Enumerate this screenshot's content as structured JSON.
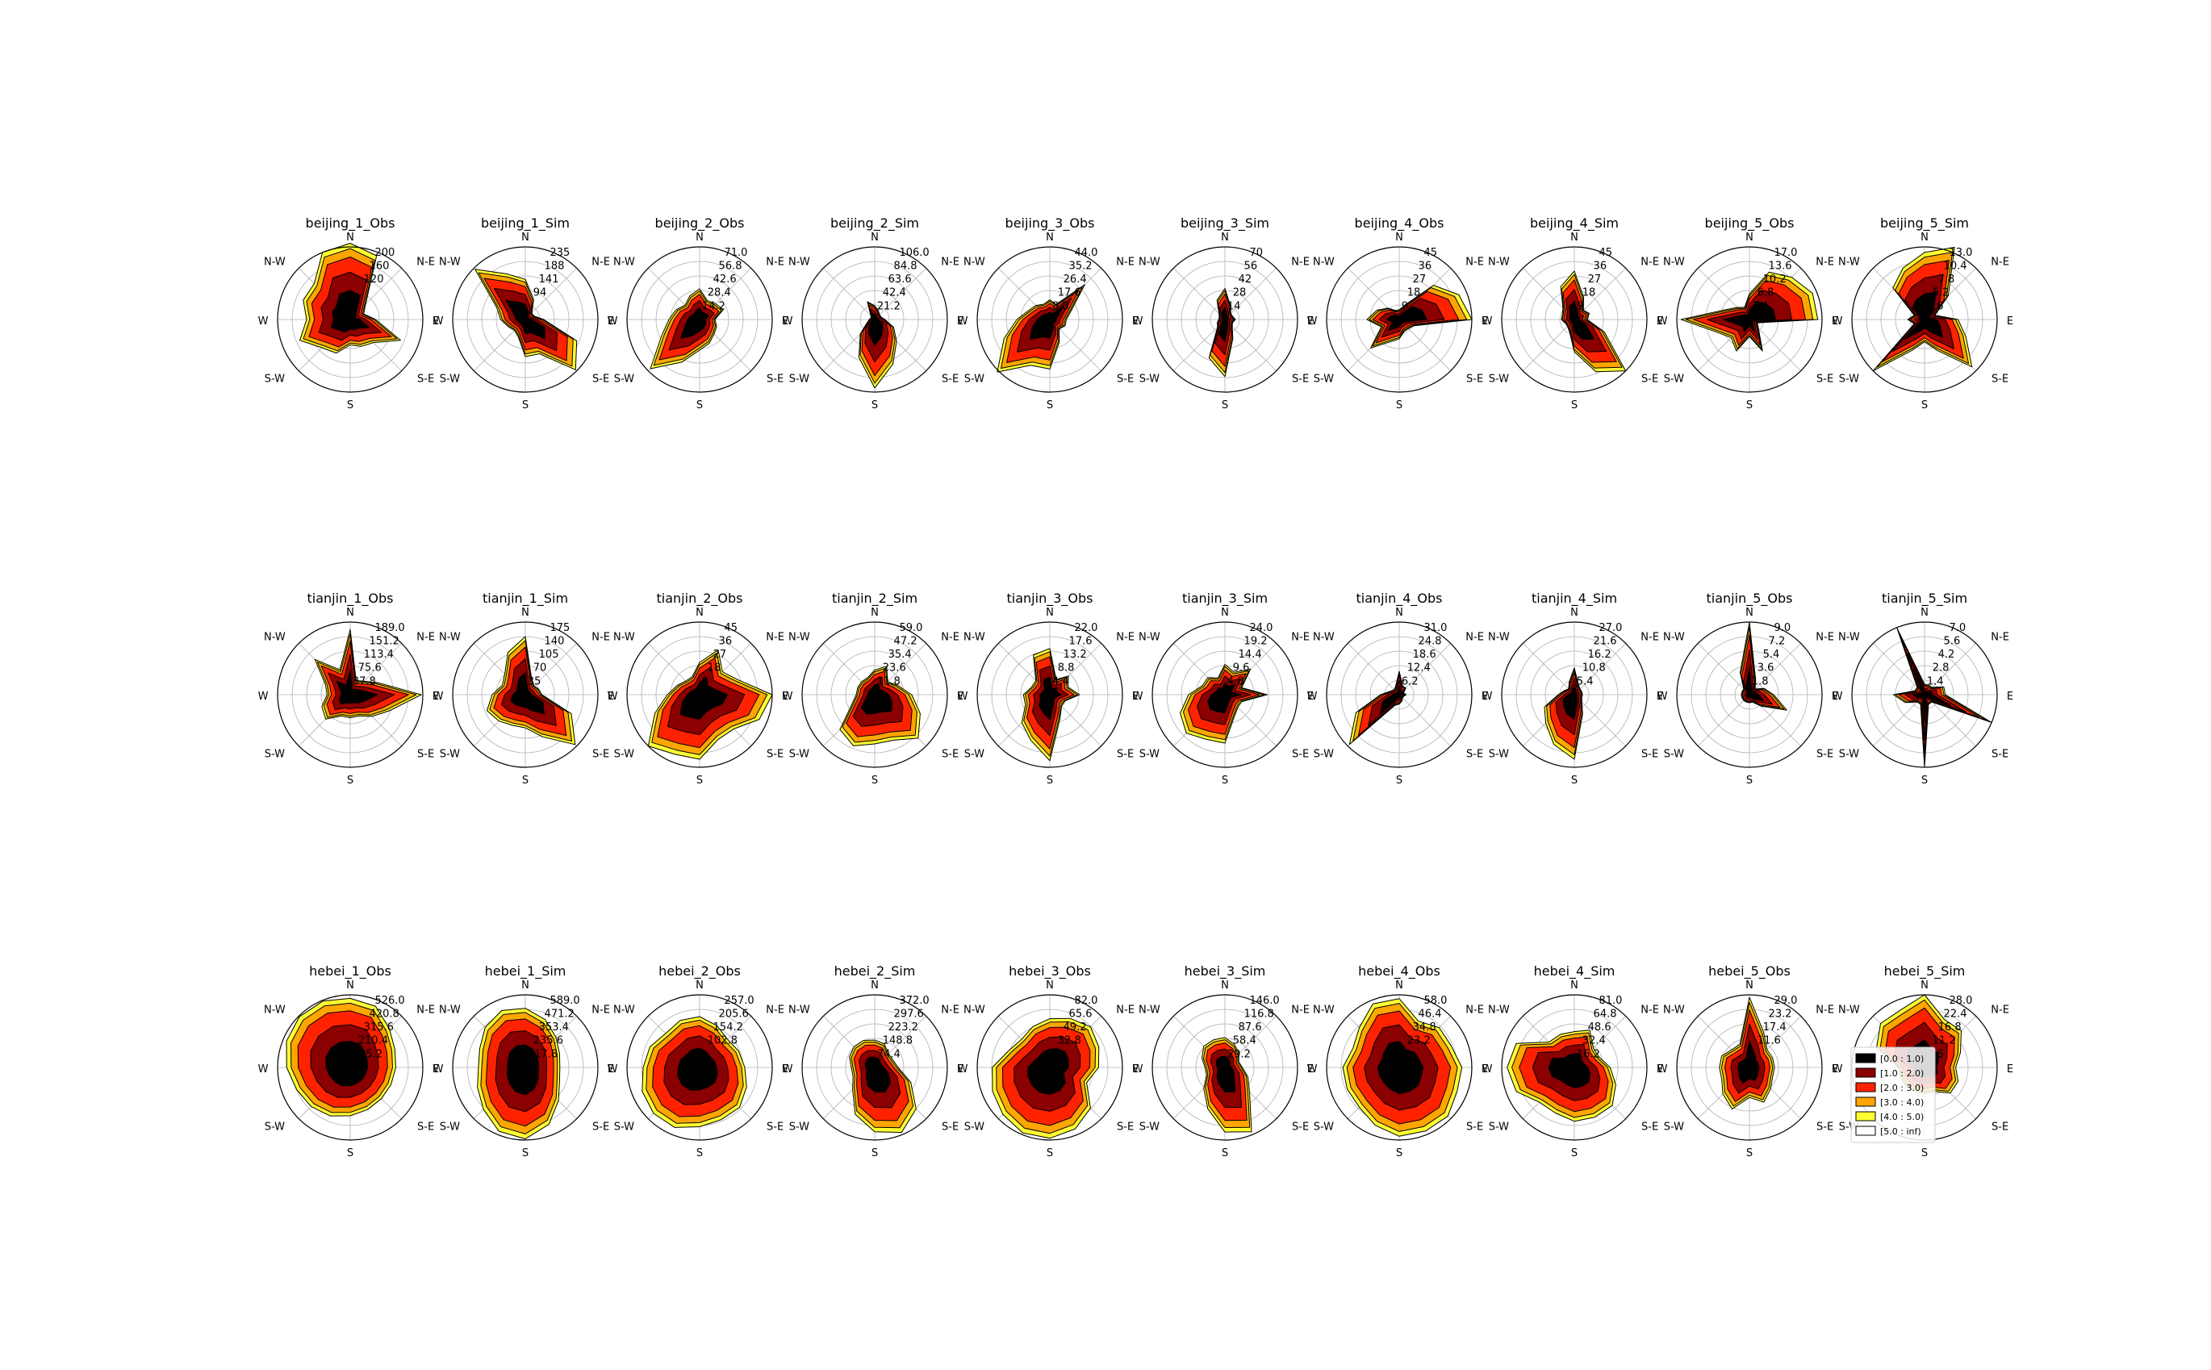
{
  "directions": [
    "N",
    "N-E",
    "E",
    "S-E",
    "S",
    "S-W",
    "W",
    "N-W"
  ],
  "speed_bins": [
    {
      "label": "[0.0 : 1.0)",
      "color": "#000000"
    },
    {
      "label": "[1.0 : 2.0)",
      "color": "#8b0000"
    },
    {
      "label": "[2.0 : 3.0)",
      "color": "#ff2200"
    },
    {
      "label": "[3.0 : 4.0)",
      "color": "#ffa500"
    },
    {
      "label": "[4.0 : 5.0)",
      "color": "#ffff33"
    },
    {
      "label": "[5.0 : inf)",
      "color": "#ffffff"
    }
  ],
  "chart_data": [
    {
      "type": "radar",
      "title": "beijing_1_Obs",
      "rlabels": [
        "200",
        "160",
        "120"
      ],
      "rmax": 200,
      "ext": [
        210,
        190,
        60,
        40,
        70,
        150,
        90,
        80,
        70,
        100,
        110,
        150,
        120,
        140,
        140,
        200
      ]
    },
    {
      "type": "radar",
      "title": "beijing_1_Sim",
      "rlabels": [
        "235",
        "188",
        "141",
        "94"
      ],
      "rmax": 235,
      "ext": [
        130,
        70,
        30,
        30,
        60,
        180,
        230,
        120,
        120,
        60,
        50,
        60,
        80,
        100,
        230,
        160
      ]
    },
    {
      "type": "radar",
      "title": "beijing_2_Obs",
      "rlabels": [
        "71.0",
        "56.8",
        "42.6",
        "28.4",
        "14.2"
      ],
      "rmax": 71,
      "ext": [
        30,
        20,
        22,
        25,
        15,
        18,
        20,
        25,
        30,
        45,
        68,
        40,
        30,
        25,
        20,
        25
      ]
    },
    {
      "type": "radar",
      "title": "beijing_2_Sim",
      "rlabels": [
        "106.0",
        "84.8",
        "63.6",
        "42.4",
        "21.2"
      ],
      "rmax": 106,
      "ext": [
        20,
        14,
        10,
        10,
        15,
        30,
        45,
        70,
        100,
        60,
        30,
        12,
        8,
        6,
        8,
        28
      ]
    },
    {
      "type": "radar",
      "title": "beijing_3_Obs",
      "rlabels": [
        "44.0",
        "35.2",
        "26.4",
        "17.6",
        "8.8"
      ],
      "rmax": 44,
      "ext": [
        12,
        10,
        30,
        14,
        10,
        10,
        8,
        15,
        30,
        30,
        45,
        30,
        20,
        14,
        12,
        10
      ]
    },
    {
      "type": "radar",
      "title": "beijing_3_Sim",
      "rlabels": [
        "70",
        "56",
        "42",
        "28",
        "14"
      ],
      "rmax": 70,
      "ext": [
        30,
        14,
        8,
        8,
        10,
        8,
        10,
        20,
        55,
        40,
        10,
        8,
        6,
        6,
        8,
        20
      ]
    },
    {
      "type": "radar",
      "title": "beijing_4_Obs",
      "rlabels": [
        "45",
        "36",
        "27",
        "18",
        "9"
      ],
      "rmax": 45,
      "ext": [
        6,
        10,
        30,
        40,
        45,
        10,
        8,
        8,
        12,
        15,
        25,
        12,
        20,
        15,
        10,
        6
      ]
    },
    {
      "type": "radar",
      "title": "beijing_4_Sim",
      "rlabels": [
        "45",
        "36",
        "27",
        "18",
        "9"
      ],
      "rmax": 45,
      "ext": [
        30,
        15,
        8,
        10,
        8,
        20,
        45,
        35,
        20,
        8,
        6,
        6,
        8,
        8,
        10,
        22
      ]
    },
    {
      "type": "radar",
      "title": "beijing_5_Obs",
      "rlabels": [
        "17.0",
        "13.6",
        "10.2",
        "6.8",
        "3.4"
      ],
      "rmax": 17,
      "ext": [
        6,
        12,
        14,
        16,
        16,
        2,
        3,
        8,
        4,
        8,
        6,
        8,
        16,
        6,
        4,
        3
      ]
    },
    {
      "type": "radar",
      "title": "beijing_5_Sim",
      "rlabels": [
        "13.0",
        "10.4",
        "7.8",
        "5.2",
        "2.6"
      ],
      "rmax": 13,
      "ext": [
        12,
        14,
        6,
        2,
        6,
        8,
        12,
        6,
        4,
        6,
        13,
        2,
        3,
        2,
        8,
        10
      ]
    },
    {
      "type": "radar",
      "title": "tianjin_1_Obs",
      "rlabels": [
        "189.0",
        "151.2",
        "113.4",
        "75.6",
        "37.8"
      ],
      "rmax": 189,
      "ext": [
        170,
        40,
        50,
        80,
        185,
        110,
        80,
        60,
        60,
        60,
        90,
        80,
        60,
        70,
        130,
        70
      ]
    },
    {
      "type": "radar",
      "title": "tianjin_1_Sim",
      "rlabels": [
        "175",
        "140",
        "105",
        "70",
        "35"
      ],
      "rmax": 175,
      "ext": [
        140,
        40,
        30,
        35,
        40,
        120,
        170,
        110,
        80,
        80,
        90,
        100,
        80,
        60,
        70,
        110
      ]
    },
    {
      "type": "radar",
      "title": "tianjin_2_Obs",
      "rlabels": [
        "45",
        "36",
        "27",
        "18",
        "9"
      ],
      "rmax": 45,
      "ext": [
        20,
        30,
        20,
        25,
        45,
        40,
        30,
        30,
        40,
        40,
        45,
        30,
        20,
        15,
        12,
        12
      ]
    },
    {
      "type": "radar",
      "title": "tianjin_2_Sim",
      "rlabels": [
        "59.0",
        "47.2",
        "35.4",
        "23.6",
        "11.8"
      ],
      "rmax": 59,
      "ext": [
        20,
        25,
        15,
        20,
        30,
        40,
        50,
        40,
        40,
        45,
        40,
        20,
        15,
        15,
        15,
        15
      ]
    },
    {
      "type": "radar",
      "title": "tianjin_3_Obs",
      "rlabels": [
        "22.0",
        "17.6",
        "13.2",
        "8.8",
        "4.4"
      ],
      "rmax": 22,
      "ext": [
        14,
        5,
        8,
        6,
        9,
        5,
        5,
        8,
        20,
        15,
        12,
        8,
        8,
        6,
        6,
        13
      ]
    },
    {
      "type": "radar",
      "title": "tianjin_3_Sim",
      "rlabels": [
        "24.0",
        "19.2",
        "14.4",
        "9.6",
        "4.8"
      ],
      "rmax": 24,
      "ext": [
        10,
        8,
        12,
        6,
        14,
        6,
        6,
        8,
        16,
        16,
        18,
        16,
        12,
        8,
        8,
        6
      ]
    },
    {
      "type": "radar",
      "title": "tianjin_4_Obs",
      "rlabels": [
        "31.0",
        "24.8",
        "18.6",
        "12.4",
        "6.2"
      ],
      "rmax": 31,
      "ext": [
        10,
        4,
        4,
        2,
        3,
        2,
        2,
        3,
        4,
        5,
        30,
        20,
        8,
        4,
        3,
        4
      ]
    },
    {
      "type": "radar",
      "title": "tianjin_4_Sim",
      "rlabels": [
        "27.0",
        "21.6",
        "16.2",
        "10.8",
        "5.4"
      ],
      "rmax": 27,
      "ext": [
        10,
        4,
        3,
        3,
        3,
        3,
        4,
        8,
        24,
        20,
        15,
        12,
        6,
        4,
        3,
        5
      ]
    },
    {
      "type": "radar",
      "title": "tianjin_5_Obs",
      "rlabels": [
        "9.0",
        "7.2",
        "5.4",
        "3.6",
        "1.8"
      ],
      "rmax": 9,
      "ext": [
        9,
        2,
        1,
        2,
        3,
        5,
        2,
        1,
        1,
        1,
        1,
        1,
        1,
        1,
        1,
        3
      ]
    },
    {
      "type": "radar",
      "title": "tianjin_5_Sim",
      "rlabels": [
        "7.0",
        "5.6",
        "4.2",
        "2.8",
        "1.4"
      ],
      "rmax": 7,
      "ext": [
        1,
        1,
        1,
        2,
        2,
        7,
        1,
        1,
        7,
        1,
        1,
        2,
        3,
        1,
        1,
        7
      ]
    },
    {
      "type": "radar",
      "title": "hebei_1_Obs",
      "rlabels": [
        "526.0",
        "420.8",
        "315.6",
        "210.4",
        "105.2"
      ],
      "rmax": 526,
      "ext": [
        500,
        480,
        400,
        350,
        330,
        320,
        320,
        330,
        350,
        380,
        400,
        420,
        460,
        500,
        520,
        520
      ]
    },
    {
      "type": "radar",
      "title": "hebei_1_Sim",
      "rlabels": [
        "589.0",
        "471.2",
        "353.4",
        "235.6",
        "117.8"
      ],
      "rmax": 589,
      "ext": [
        480,
        420,
        350,
        300,
        280,
        300,
        380,
        500,
        580,
        560,
        480,
        420,
        380,
        400,
        460,
        500
      ]
    },
    {
      "type": "radar",
      "title": "hebei_2_Obs",
      "rlabels": [
        "257.0",
        "205.6",
        "154.2",
        "102.8"
      ],
      "rmax": 257,
      "ext": [
        180,
        160,
        140,
        150,
        160,
        180,
        200,
        200,
        210,
        230,
        230,
        220,
        200,
        190,
        170,
        180
      ]
    },
    {
      "type": "radar",
      "title": "hebei_2_Sim",
      "rlabels": [
        "372.0",
        "297.6",
        "223.2",
        "148.8",
        "74.4"
      ],
      "rmax": 372,
      "ext": [
        140,
        130,
        100,
        100,
        120,
        200,
        300,
        360,
        330,
        260,
        160,
        120,
        120,
        140,
        150,
        150
      ]
    },
    {
      "type": "radar",
      "title": "hebei_3_Obs",
      "rlabels": [
        "82.0",
        "65.6",
        "49.2",
        "32.8"
      ],
      "rmax": 82,
      "ext": [
        55,
        60,
        65,
        60,
        55,
        45,
        65,
        75,
        80,
        80,
        75,
        70,
        65,
        50,
        45,
        50
      ]
    },
    {
      "type": "radar",
      "title": "hebei_3_Sim",
      "rlabels": [
        "146.0",
        "116.8",
        "87.6",
        "58.4",
        "29.2"
      ],
      "rmax": 146,
      "ext": [
        60,
        50,
        40,
        30,
        35,
        50,
        70,
        140,
        130,
        90,
        60,
        40,
        40,
        50,
        60,
        60
      ]
    },
    {
      "type": "radar",
      "title": "hebei_4_Obs",
      "rlabels": [
        "58.0",
        "46.4",
        "34.8",
        "23.2"
      ],
      "rmax": 58,
      "ext": [
        55,
        40,
        45,
        45,
        50,
        50,
        55,
        55,
        55,
        50,
        45,
        45,
        45,
        40,
        45,
        55
      ]
    },
    {
      "type": "radar",
      "title": "hebei_4_Sim",
      "rlabels": [
        "81.0",
        "64.8",
        "48.6",
        "32.4",
        "16.2"
      ],
      "rmax": 81,
      "ext": [
        40,
        45,
        30,
        30,
        40,
        50,
        60,
        60,
        60,
        55,
        55,
        70,
        75,
        70,
        40,
        40
      ]
    },
    {
      "type": "radar",
      "title": "hebei_5_Obs",
      "rlabels": [
        "29.0",
        "23.2",
        "17.4",
        "11.6"
      ],
      "rmax": 29,
      "ext": [
        28,
        15,
        10,
        10,
        10,
        10,
        12,
        15,
        12,
        18,
        15,
        12,
        12,
        12,
        10,
        10
      ]
    },
    {
      "type": "radar",
      "title": "hebei_5_Sim",
      "rlabels": [
        "28.0",
        "22.4",
        "16.8",
        "11.2",
        "5.6"
      ],
      "rmax": 28,
      "ext": [
        28,
        20,
        20,
        15,
        12,
        14,
        14,
        10,
        10,
        10,
        10,
        10,
        10,
        20,
        24,
        24
      ]
    }
  ]
}
